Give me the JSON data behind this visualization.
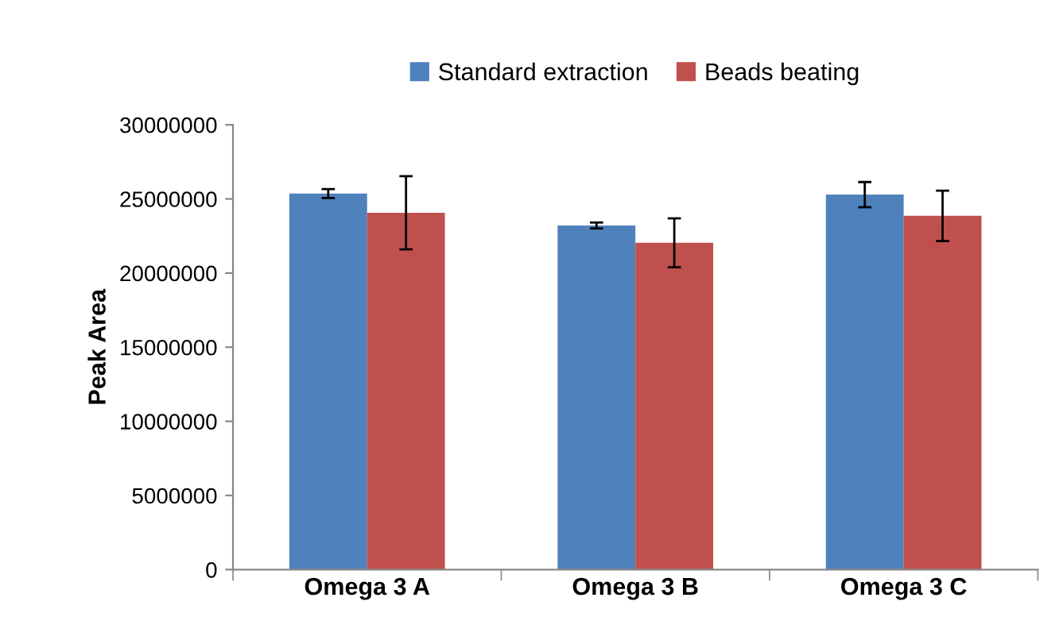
{
  "chart_data": {
    "type": "bar",
    "ylabel": "Peak Area",
    "categories": [
      "Omega 3 A",
      "Omega 3 B",
      "Omega 3 C"
    ],
    "series": [
      {
        "name": "Standard extraction",
        "color": "#4f81bd",
        "values": [
          25360000,
          23210000,
          25290000
        ],
        "errors": [
          300000,
          200000,
          850000
        ]
      },
      {
        "name": "Beads beating",
        "color": "#c0504d",
        "values": [
          24070000,
          22040000,
          23860000
        ],
        "errors": [
          2470000,
          1650000,
          1700000
        ]
      }
    ],
    "ylim": [
      0,
      30000000
    ],
    "yticks": [
      0,
      5000000,
      10000000,
      15000000,
      20000000,
      25000000,
      30000000
    ],
    "grid": false,
    "legend": "top"
  }
}
